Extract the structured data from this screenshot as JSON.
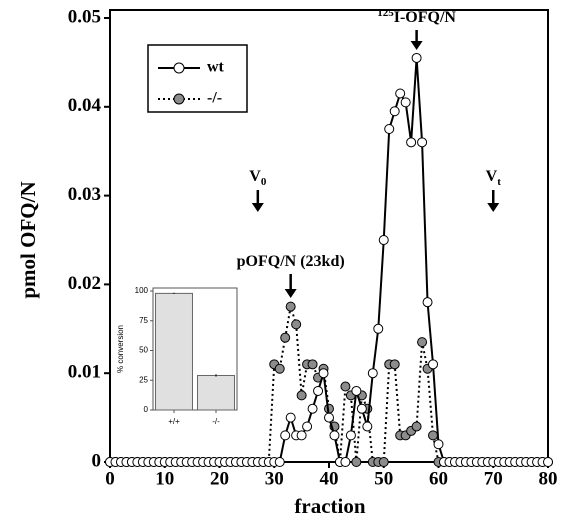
{
  "chart_data": {
    "type": "line",
    "xlabel": "fraction",
    "ylabel": "pmol OFQ/N",
    "x": [
      0,
      1,
      2,
      3,
      4,
      5,
      6,
      7,
      8,
      9,
      10,
      11,
      12,
      13,
      14,
      15,
      16,
      17,
      18,
      19,
      20,
      21,
      22,
      23,
      24,
      25,
      26,
      27,
      28,
      29,
      30,
      31,
      32,
      33,
      34,
      35,
      36,
      37,
      38,
      39,
      40,
      41,
      42,
      43,
      44,
      45,
      46,
      47,
      48,
      49,
      50,
      51,
      52,
      53,
      54,
      55,
      56,
      57,
      58,
      59,
      60,
      61,
      62,
      63,
      64,
      65,
      66,
      67,
      68,
      69,
      70,
      71,
      72,
      73,
      74,
      75,
      76,
      77,
      78,
      79,
      80
    ],
    "series": [
      {
        "name": "-/-",
        "color": "#8c8c8c",
        "line": "dotted",
        "values": [
          0,
          0,
          0,
          0,
          0,
          0,
          0,
          0,
          0,
          0,
          0,
          0,
          0,
          0,
          0,
          0,
          0,
          0,
          0,
          0,
          0,
          0,
          0,
          0,
          0,
          0,
          0,
          0,
          0,
          0,
          0.011,
          0.0105,
          0.014,
          0.0175,
          0.0155,
          0.0075,
          0.011,
          0.011,
          0.0095,
          0.0105,
          0.006,
          0.004,
          0,
          0.0085,
          0.0075,
          0,
          0.0075,
          0.006,
          0,
          0,
          0,
          0.011,
          0.011,
          0.003,
          0.003,
          0.0035,
          0.004,
          0.0135,
          0.0105,
          0.003,
          0,
          0,
          0,
          0,
          0,
          0,
          0,
          0,
          0,
          0,
          0,
          0,
          0,
          0,
          0,
          0,
          0,
          0,
          0,
          0,
          0
        ]
      },
      {
        "name": "wt",
        "color": "#ffffff",
        "line": "solid",
        "values": [
          0,
          0,
          0,
          0,
          0,
          0,
          0,
          0,
          0,
          0,
          0,
          0,
          0,
          0,
          0,
          0,
          0,
          0,
          0,
          0,
          0,
          0,
          0,
          0,
          0,
          0,
          0,
          0,
          0,
          0,
          0,
          0,
          0.003,
          0.005,
          0.003,
          0.003,
          0.004,
          0.006,
          0.008,
          0.01,
          0.005,
          0.003,
          0,
          0,
          0.003,
          0.008,
          0.006,
          0.004,
          0.01,
          0.015,
          0.025,
          0.0375,
          0.0395,
          0.0415,
          0.0405,
          0.036,
          0.0455,
          0.036,
          0.018,
          0.011,
          0.002,
          0,
          0,
          0,
          0,
          0,
          0,
          0,
          0,
          0,
          0,
          0,
          0,
          0,
          0,
          0,
          0,
          0,
          0,
          0,
          0
        ]
      }
    ],
    "xlim": [
      0,
      80
    ],
    "xticks": [
      0,
      10,
      20,
      30,
      40,
      50,
      60,
      70,
      80
    ],
    "ylim": [
      0,
      0.05
    ],
    "yticks": [
      0,
      0.01,
      0.02,
      0.03,
      0.04,
      0.05
    ],
    "legend": "upper-left",
    "annotations": [
      {
        "x": 27,
        "base": "V",
        "sub": "0"
      },
      {
        "x": 70,
        "base": "V",
        "sub": "t"
      },
      {
        "x": 56,
        "sup": "125",
        "base": "I-OFQ/N"
      },
      {
        "x": 33,
        "base": "pOFQ/N (23kd)"
      }
    ],
    "inset": {
      "type": "bar",
      "ylabel": "% conversion",
      "categories": [
        "+/+",
        "-/-"
      ],
      "values": [
        98,
        29
      ],
      "errors": [
        0.5,
        1
      ],
      "color": "#e0e0e0",
      "ylim": [
        0,
        100
      ],
      "yticks": [
        0,
        25,
        50,
        75,
        100
      ]
    }
  }
}
